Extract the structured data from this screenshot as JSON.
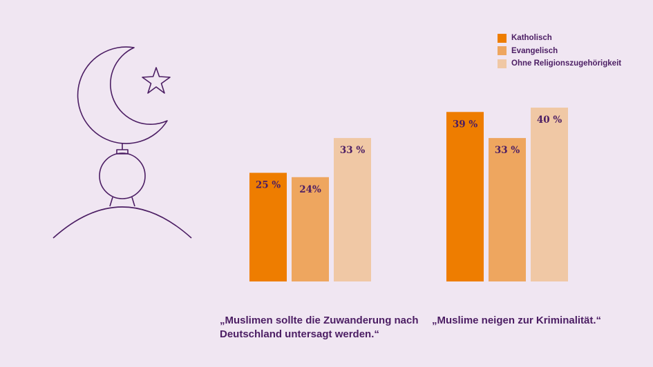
{
  "chart_data": {
    "type": "bar",
    "groups": [
      "„Muslimen sollte die Zuwanderung nach Deutschland untersagt werden.“",
      "„Muslime neigen zur Kriminalität.“"
    ],
    "series": [
      {
        "name": "Katholisch",
        "color": "#ee7d00",
        "values": [
          25,
          39
        ],
        "labels": [
          "25 %",
          "39 %"
        ]
      },
      {
        "name": "Evangelisch",
        "color": "#eea65f",
        "values": [
          24,
          33
        ],
        "labels": [
          "24%",
          "33 %"
        ]
      },
      {
        "name": "Ohne Religionszugehörigkeit",
        "color": "#f0c8a5",
        "values": [
          33,
          40
        ],
        "labels": [
          "33 %",
          "40 %"
        ]
      }
    ],
    "ylim": [
      0,
      42
    ],
    "legend_position": "top-right"
  },
  "icon": {
    "name": "crescent-star-icon",
    "stroke": "#4b1d63"
  }
}
